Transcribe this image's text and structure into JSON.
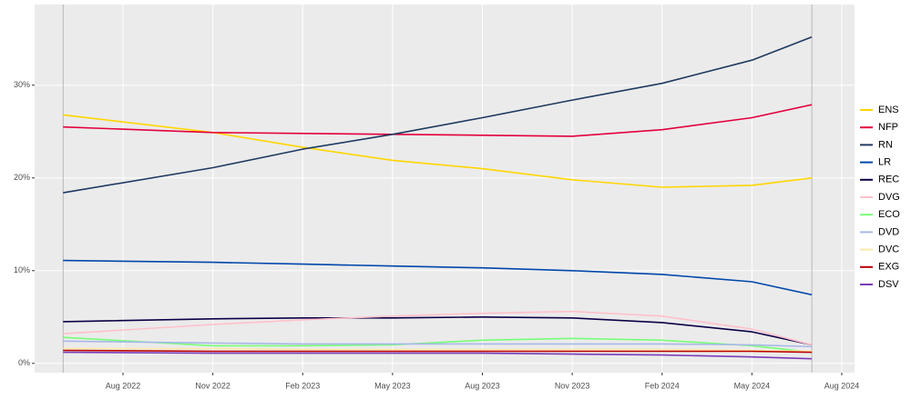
{
  "chart_data": {
    "type": "line",
    "x": [
      "2022-06",
      "2022-11",
      "2023-02",
      "2023-05",
      "2023-08",
      "2023-11",
      "2024-02",
      "2024-05",
      "2024-07"
    ],
    "series": [
      {
        "name": "ENS",
        "color": "#ffd600",
        "values": [
          26.8,
          24.9,
          23.3,
          21.9,
          21.0,
          19.8,
          19.0,
          19.2,
          20.0
        ]
      },
      {
        "name": "NFP",
        "color": "#e4003c",
        "values": [
          25.5,
          24.9,
          24.8,
          24.7,
          24.6,
          24.5,
          25.2,
          26.5,
          27.9
        ]
      },
      {
        "name": "RN",
        "color": "#1f3a60",
        "values": [
          18.4,
          21.1,
          23.1,
          24.7,
          26.5,
          28.4,
          30.2,
          32.7,
          35.2
        ]
      },
      {
        "name": "LR",
        "color": "#0047ab",
        "values": [
          11.1,
          10.9,
          10.7,
          10.5,
          10.3,
          10.0,
          9.6,
          8.8,
          7.4
        ]
      },
      {
        "name": "REC",
        "color": "#0a0047",
        "values": [
          4.5,
          4.8,
          4.9,
          4.9,
          5.0,
          4.9,
          4.4,
          3.4,
          2.0
        ]
      },
      {
        "name": "DVG",
        "color": "#ffc0cb",
        "values": [
          3.2,
          4.2,
          4.7,
          5.1,
          5.4,
          5.6,
          5.1,
          3.7,
          2.0
        ]
      },
      {
        "name": "ECO",
        "color": "#77ff77",
        "values": [
          2.8,
          1.9,
          1.9,
          2.0,
          2.5,
          2.7,
          2.5,
          1.9,
          1.2
        ]
      },
      {
        "name": "DVD",
        "color": "#a8b8e8",
        "values": [
          2.4,
          2.2,
          2.1,
          2.1,
          2.1,
          2.1,
          2.1,
          2.0,
          1.8
        ]
      },
      {
        "name": "DVC",
        "color": "#ffe8a8",
        "values": [
          1.6,
          1.6,
          1.5,
          1.5,
          1.5,
          1.5,
          1.5,
          1.4,
          1.3
        ]
      },
      {
        "name": "EXG",
        "color": "#bb0000",
        "values": [
          1.4,
          1.3,
          1.3,
          1.3,
          1.3,
          1.3,
          1.3,
          1.3,
          1.2
        ]
      },
      {
        "name": "DSV",
        "color": "#7a3cb8",
        "values": [
          1.2,
          1.1,
          1.1,
          1.1,
          1.1,
          1.0,
          0.9,
          0.7,
          0.5
        ]
      }
    ],
    "xlim": [
      "2022-05",
      "2024-08"
    ],
    "xticks": [
      {
        "value": "2022-08",
        "label": "Aug 2022"
      },
      {
        "value": "2022-11",
        "label": "Nov 2022"
      },
      {
        "value": "2023-02",
        "label": "Feb 2023"
      },
      {
        "value": "2023-05",
        "label": "May 2023"
      },
      {
        "value": "2023-08",
        "label": "Aug 2023"
      },
      {
        "value": "2023-11",
        "label": "Nov 2023"
      },
      {
        "value": "2024-02",
        "label": "Feb 2024"
      },
      {
        "value": "2024-05",
        "label": "May 2024"
      },
      {
        "value": "2024-08",
        "label": "Aug 2024"
      }
    ],
    "ylim": [
      -1,
      38.7
    ],
    "yticks": [
      {
        "value": 0,
        "label": "0%"
      },
      {
        "value": 10,
        "label": "10%"
      },
      {
        "value": 20,
        "label": "20%"
      },
      {
        "value": 30,
        "label": "30%"
      }
    ],
    "grid": true,
    "legend": "right"
  }
}
